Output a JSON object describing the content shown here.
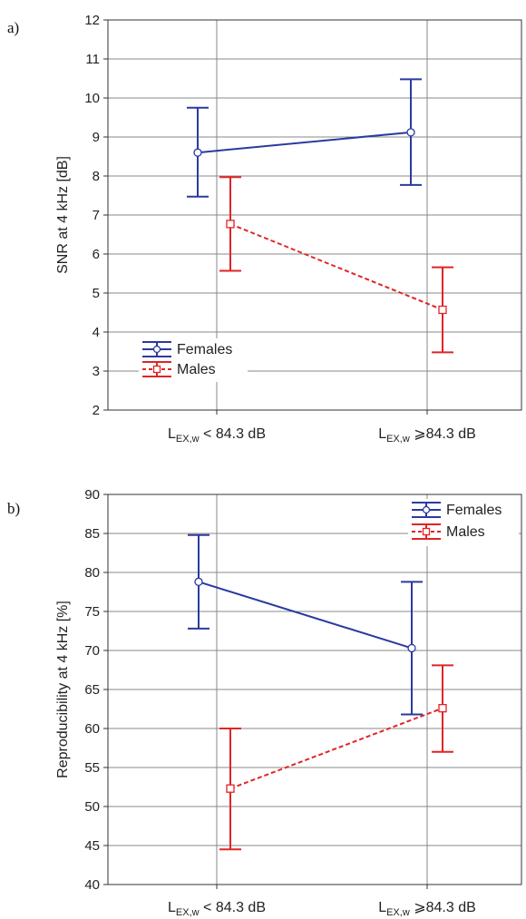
{
  "chart_data": [
    {
      "type": "line",
      "panel_label": "a)",
      "ylabel": "SNR at 4 kHz [dB]",
      "ylim": [
        2,
        12
      ],
      "yticks": [
        2,
        3,
        4,
        5,
        6,
        7,
        8,
        9,
        10,
        11,
        12
      ],
      "grid": true,
      "legend_position": "bottom-left",
      "categories": [
        {
          "main": "L",
          "sub": "EX,w",
          "rest": " < 84.3 dB"
        },
        {
          "main": "L",
          "sub": "EX,w",
          "rest": " ⩾84.3 dB"
        }
      ],
      "series": [
        {
          "name": "Females",
          "color": "#2b3a9e",
          "marker": "circle",
          "dash": false,
          "values": [
            8.6,
            9.12
          ],
          "lower": [
            7.47,
            7.77
          ],
          "upper": [
            9.75,
            10.48
          ]
        },
        {
          "name": "Males",
          "color": "#e02424",
          "marker": "square",
          "dash": true,
          "values": [
            6.77,
            4.57
          ],
          "lower": [
            5.57,
            3.48
          ],
          "upper": [
            7.97,
            5.66
          ]
        }
      ]
    },
    {
      "type": "line",
      "panel_label": "b)",
      "ylabel": "Reproducibility at 4 kHz [%]",
      "ylim": [
        40,
        90
      ],
      "yticks": [
        40,
        45,
        50,
        55,
        60,
        65,
        70,
        75,
        80,
        85,
        90
      ],
      "grid": true,
      "legend_position": "top-right",
      "categories": [
        {
          "main": "L",
          "sub": "EX,w",
          "rest": " < 84.3 dB"
        },
        {
          "main": "L",
          "sub": "EX,w",
          "rest": " ⩾84.3 dB"
        }
      ],
      "series": [
        {
          "name": "Females",
          "color": "#2b3a9e",
          "marker": "circle",
          "dash": false,
          "values": [
            78.8,
            70.3
          ],
          "lower": [
            72.8,
            61.8
          ],
          "upper": [
            84.8,
            78.8
          ]
        },
        {
          "name": "Males",
          "color": "#e02424",
          "marker": "square",
          "dash": true,
          "values": [
            52.3,
            62.6
          ],
          "lower": [
            44.5,
            57.0
          ],
          "upper": [
            60.0,
            68.1
          ]
        }
      ]
    }
  ]
}
